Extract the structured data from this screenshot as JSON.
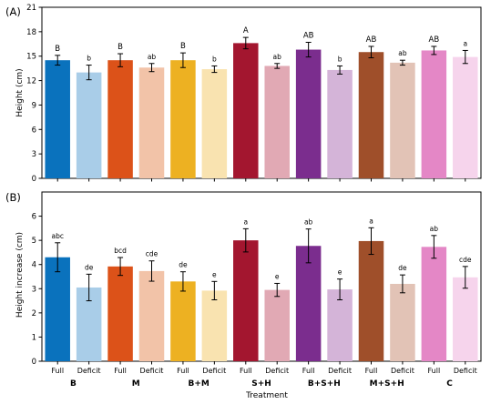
{
  "chart_data": [
    {
      "type": "bar",
      "panel_label": "(A)",
      "ylabel": "Height (cm)",
      "ylim": [
        0,
        21
      ],
      "yticks": [
        "0",
        "3",
        "6",
        "9",
        "12",
        "15",
        "18",
        "21"
      ],
      "grid": false,
      "categories": [
        "Full",
        "Deficit",
        "Full",
        "Deficit",
        "Full",
        "Deficit",
        "Full",
        "Deficit",
        "Full",
        "Deficit",
        "Full",
        "Deficit",
        "Full",
        "Deficit"
      ],
      "values": [
        14.5,
        13.0,
        14.5,
        13.6,
        14.5,
        13.4,
        16.6,
        13.8,
        15.8,
        13.3,
        15.5,
        14.2,
        15.7,
        14.9
      ],
      "errors": [
        0.6,
        0.9,
        0.8,
        0.5,
        0.9,
        0.4,
        0.7,
        0.3,
        0.9,
        0.5,
        0.7,
        0.3,
        0.5,
        0.8
      ],
      "letters": [
        "B",
        "b",
        "B",
        "ab",
        "B",
        "b",
        "A",
        "ab",
        "AB",
        "b",
        "AB",
        "ab",
        "AB",
        "a"
      ]
    },
    {
      "type": "bar",
      "panel_label": "(B)",
      "ylabel": "Height increase (cm)",
      "ylim": [
        0,
        7
      ],
      "yticks": [
        "0",
        "1",
        "2",
        "3",
        "4",
        "5",
        "6"
      ],
      "grid": false,
      "categories": [
        "Full",
        "Deficit",
        "Full",
        "Deficit",
        "Full",
        "Deficit",
        "Full",
        "Deficit",
        "Full",
        "Deficit",
        "Full",
        "Deficit",
        "Full",
        "Deficit"
      ],
      "values": [
        4.3,
        3.05,
        3.92,
        3.73,
        3.3,
        2.92,
        5.0,
        2.95,
        4.77,
        2.97,
        4.97,
        3.2,
        4.73,
        3.47
      ],
      "errors": [
        0.6,
        0.55,
        0.37,
        0.42,
        0.4,
        0.38,
        0.48,
        0.27,
        0.7,
        0.43,
        0.55,
        0.37,
        0.47,
        0.45
      ],
      "letters": [
        "abc",
        "de",
        "bcd",
        "cde",
        "de",
        "e",
        "a",
        "e",
        "ab",
        "e",
        "a",
        "de",
        "ab",
        "cde"
      ]
    }
  ],
  "groups": [
    "B",
    "M",
    "B+M",
    "S+H",
    "B+S+H",
    "M+S+H",
    "C"
  ],
  "xlabel": "Treatment",
  "colors": [
    "#0a72bd",
    "#a9cde8",
    "#dc5219",
    "#f2c3a8",
    "#edb122",
    "#f9e3b0",
    "#a3162f",
    "#e1a9b4",
    "#7b2d8e",
    "#d4b4d8",
    "#9f4f2a",
    "#e2c3b6",
    "#e487c6",
    "#f6d4ec"
  ]
}
